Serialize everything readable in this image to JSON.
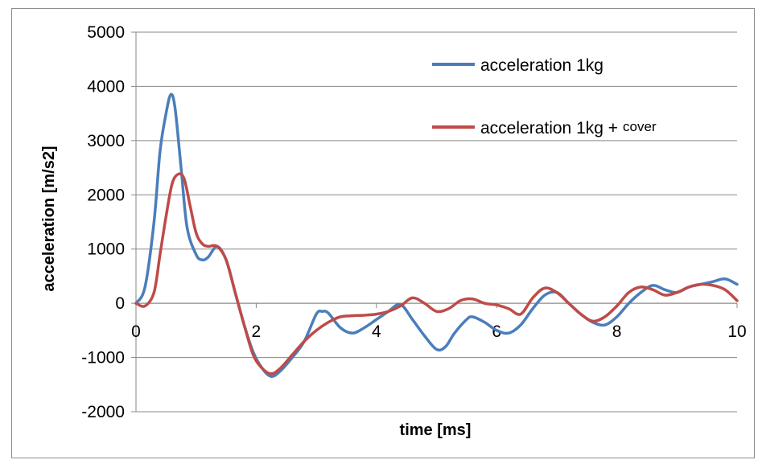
{
  "chart_data": {
    "type": "line",
    "title": "",
    "xlabel": "time [ms]",
    "ylabel": "acceleration [m/s2]",
    "xlim": [
      0,
      10
    ],
    "ylim": [
      -2000,
      5000
    ],
    "grid": true,
    "legend_position": "top-right",
    "x_ticks": [
      "0",
      "2",
      "4",
      "6",
      "8",
      "10"
    ],
    "y_ticks": [
      "-2000",
      "-1000",
      "0",
      "1000",
      "2000",
      "3000",
      "4000",
      "5000"
    ],
    "series": [
      {
        "name": "acceleration 1kg",
        "color": "#4a7ebb",
        "x": [
          0,
          0.15,
          0.3,
          0.4,
          0.5,
          0.58,
          0.65,
          0.75,
          0.85,
          1.0,
          1.1,
          1.2,
          1.35,
          1.5,
          1.65,
          1.8,
          1.95,
          2.1,
          2.25,
          2.4,
          2.6,
          2.8,
          3.0,
          3.1,
          3.2,
          3.4,
          3.6,
          3.8,
          4.0,
          4.2,
          4.4,
          4.6,
          4.8,
          5.0,
          5.15,
          5.3,
          5.5,
          5.6,
          5.8,
          6.0,
          6.2,
          6.4,
          6.6,
          6.8,
          7.0,
          7.2,
          7.4,
          7.6,
          7.8,
          8.0,
          8.2,
          8.4,
          8.6,
          8.8,
          9.0,
          9.2,
          9.4,
          9.6,
          9.8,
          10.0
        ],
        "values": [
          0,
          300,
          1500,
          2800,
          3500,
          3850,
          3600,
          2500,
          1400,
          900,
          800,
          850,
          1050,
          800,
          200,
          -400,
          -900,
          -1200,
          -1350,
          -1250,
          -1000,
          -700,
          -200,
          -150,
          -180,
          -450,
          -550,
          -450,
          -300,
          -150,
          -20,
          -300,
          -600,
          -850,
          -800,
          -550,
          -300,
          -250,
          -350,
          -500,
          -550,
          -400,
          -100,
          150,
          200,
          0,
          -200,
          -350,
          -400,
          -250,
          0,
          200,
          330,
          250,
          200,
          300,
          350,
          400,
          450,
          350
        ],
        "labels_visible": false
      },
      {
        "name": "acceleration 1kg + cover",
        "color": "#be4b48",
        "x": [
          0,
          0.15,
          0.3,
          0.4,
          0.5,
          0.6,
          0.7,
          0.8,
          0.9,
          1.0,
          1.1,
          1.2,
          1.35,
          1.5,
          1.65,
          1.8,
          1.95,
          2.1,
          2.25,
          2.4,
          2.6,
          2.8,
          3.0,
          3.2,
          3.4,
          3.6,
          3.8,
          4.0,
          4.2,
          4.4,
          4.6,
          4.8,
          5.0,
          5.2,
          5.4,
          5.6,
          5.8,
          6.0,
          6.2,
          6.4,
          6.6,
          6.8,
          7.0,
          7.2,
          7.4,
          7.6,
          7.8,
          8.0,
          8.2,
          8.4,
          8.6,
          8.8,
          9.0,
          9.2,
          9.4,
          9.6,
          9.8,
          10.0
        ],
        "values": [
          0,
          -50,
          200,
          900,
          1600,
          2200,
          2380,
          2300,
          1800,
          1300,
          1100,
          1050,
          1050,
          800,
          200,
          -400,
          -950,
          -1200,
          -1300,
          -1200,
          -950,
          -700,
          -500,
          -350,
          -250,
          -230,
          -220,
          -200,
          -150,
          -50,
          100,
          0,
          -150,
          -100,
          50,
          80,
          0,
          -30,
          -100,
          -200,
          100,
          280,
          200,
          0,
          -200,
          -330,
          -250,
          -50,
          200,
          300,
          250,
          150,
          200,
          300,
          350,
          330,
          250,
          50
        ],
        "labels_visible": false
      }
    ]
  }
}
